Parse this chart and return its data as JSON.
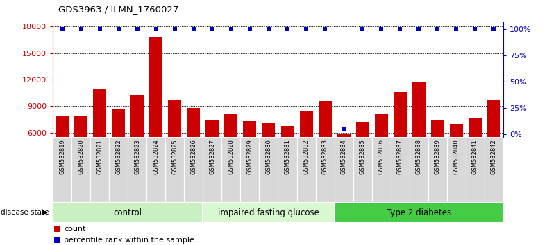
{
  "title": "GDS3963 / ILMN_1760027",
  "samples": [
    "GSM532819",
    "GSM532820",
    "GSM532821",
    "GSM532822",
    "GSM532823",
    "GSM532824",
    "GSM532825",
    "GSM532826",
    "GSM532827",
    "GSM532828",
    "GSM532829",
    "GSM532830",
    "GSM532831",
    "GSM532832",
    "GSM532833",
    "GSM532834",
    "GSM532835",
    "GSM532836",
    "GSM532837",
    "GSM532838",
    "GSM532839",
    "GSM532840",
    "GSM532841",
    "GSM532842"
  ],
  "counts": [
    7900,
    7950,
    11000,
    8700,
    10300,
    16800,
    9700,
    8800,
    7500,
    8100,
    7350,
    7100,
    6800,
    8500,
    9600,
    5900,
    7200,
    8200,
    10600,
    11800,
    7400,
    7000,
    7600,
    9700
  ],
  "percentile_values": [
    100,
    100,
    100,
    100,
    100,
    100,
    100,
    100,
    100,
    100,
    100,
    100,
    100,
    100,
    100,
    5,
    100,
    100,
    100,
    100,
    100,
    100,
    100,
    100
  ],
  "groups": [
    {
      "label": "control",
      "start": 0,
      "end": 8,
      "color": "#d8f5d0"
    },
    {
      "label": "impaired fasting glucose",
      "start": 8,
      "end": 15,
      "color": "#e0fad8"
    },
    {
      "label": "Type 2 diabetes",
      "start": 15,
      "end": 24,
      "color": "#44cc44"
    }
  ],
  "bar_color": "#CC0000",
  "dot_color": "#0000BB",
  "ylim_left": [
    5500,
    18500
  ],
  "ylim_right": [
    -3,
    107
  ],
  "yticks_left": [
    6000,
    9000,
    12000,
    15000,
    18000
  ],
  "yticks_right": [
    0,
    25,
    50,
    75,
    100
  ],
  "legend_items": [
    {
      "color": "#CC0000",
      "label": "count",
      "marker": "s"
    },
    {
      "color": "#0000BB",
      "label": "percentile rank within the sample",
      "marker": "s"
    }
  ],
  "disease_state_label": "disease state"
}
